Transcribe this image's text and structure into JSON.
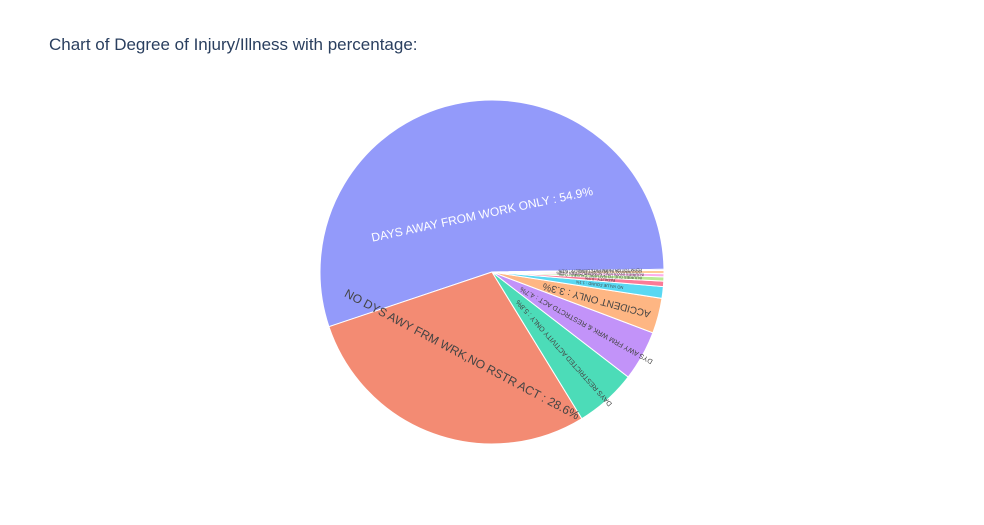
{
  "chart_data": {
    "type": "pie",
    "title": "Chart of Degree of Injury/Illness with percentage:",
    "labels": [
      "DAYS AWAY FROM WORK ONLY",
      "NO DYS AWY FRM WRK,NO RSTR ACT",
      "DAYS RESTRICTED ACTIVITY ONLY",
      "DYS AWY FRM WRK & RESTRCTD ACT",
      "ACCIDENT ONLY",
      "NO VALUE FOUND",
      "FATALITY",
      "INJURIES DUE TO NATURAL CAUSES",
      "INJURIES INVOLVING NONEMPLOYEES",
      "OCCUPATNAL ILLNESS NOT DEG 1-6",
      "PERM TOT OR PERM PRTL DISABLTY"
    ],
    "display_text": [
      "DAYS AWAY FROM WORK ONLY : 54.9%",
      "NO DYS AWY FRM WRK,NO RSTR ACT : 28.6%",
      "DAYS RESTRICTED ACTIVITY ONLY : 5.8%",
      "DYS AWY FRM WRK & RESTRCTD ACT : 4.7%",
      "ACCIDENT ONLY : 3.3%",
      "NO VALUE FOUND : 1.1%",
      "FATALITY : 0.5%",
      "INJURIES DUE TO NATURAL CAUSES : 0.4%",
      "INJURIES INVOLVING NONEMPLOYEES : 0.3%",
      "OCCUPATNAL ILLNESS NOT DEG 1-6 : 0.3%",
      "PERM TOT OR PERM PRTL DISABLTY : 0.1%"
    ],
    "values": [
      54.9,
      28.6,
      5.8,
      4.7,
      3.3,
      1.1,
      0.5,
      0.4,
      0.3,
      0.3,
      0.1
    ],
    "colors": [
      "#939afa",
      "#f38b73",
      "#4cdcb8",
      "#c293f9",
      "#feb683",
      "#59d8f2",
      "#fb7a97",
      "#b9eb96",
      "#feaeeb",
      "#fecc97",
      "#939afa"
    ],
    "label_colors": [
      "#ffffff",
      "#444444",
      "#444444",
      "#444444",
      "#444444",
      "#444444",
      "#444444",
      "#444444",
      "#444444",
      "#444444",
      "#444444"
    ],
    "label_font_sizes": [
      12,
      12,
      7,
      7,
      10,
      4,
      4,
      4,
      4,
      4,
      4
    ],
    "textinfo": "text inside, radial/tangential orientation",
    "legend": "none"
  }
}
